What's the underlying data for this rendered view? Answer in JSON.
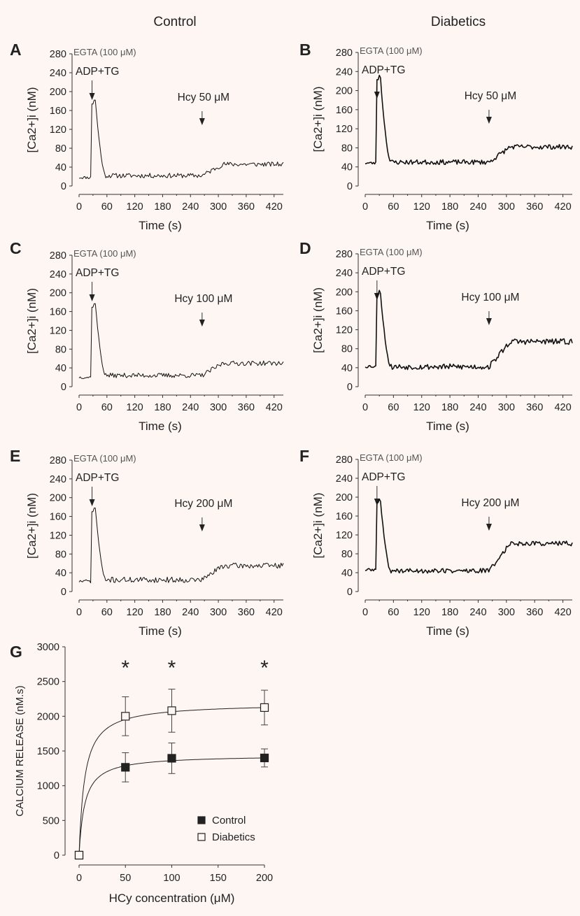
{
  "figure": {
    "col_titles": [
      "Control",
      "Diabetics"
    ]
  },
  "chart_data": [
    {
      "panel": "A",
      "type": "line",
      "column": "Control",
      "xlabel": "Time (s)",
      "ylabel": "[Ca2+]i (nM)",
      "xlim": [
        0,
        440
      ],
      "ylim": [
        0,
        280
      ],
      "xticks": [
        0,
        60,
        120,
        180,
        240,
        300,
        360,
        420
      ],
      "yticks": [
        0,
        40,
        80,
        120,
        160,
        200,
        240,
        280
      ],
      "annotations": {
        "egta": "EGTA (100 μM)",
        "agent": "ADP+TG",
        "agent_time": 28,
        "hcy": "Hcy 50 μM",
        "hcy_time": 265
      },
      "series": [
        {
          "baseline": 20,
          "peak": 182,
          "peak_time": 35,
          "pre_level": 18,
          "mid_level": 22,
          "end_level": 46,
          "noise": 5,
          "seed": 11
        }
      ]
    },
    {
      "panel": "B",
      "type": "line",
      "column": "Diabetics",
      "xlabel": "Time (s)",
      "ylabel": "[Ca2+]i (nM)",
      "xlim": [
        0,
        440
      ],
      "ylim": [
        0,
        280
      ],
      "xticks": [
        0,
        60,
        120,
        180,
        240,
        300,
        360,
        420
      ],
      "yticks": [
        0,
        40,
        80,
        120,
        160,
        200,
        240,
        280
      ],
      "annotations": {
        "egta": "EGTA (100 μM)",
        "agent": "ADP+TG",
        "agent_time": 25,
        "hcy": "Hcy 50 μM",
        "hcy_time": 263
      },
      "series": [
        {
          "baseline": 48,
          "peak": 232,
          "peak_time": 32,
          "pre_level": 48,
          "mid_level": 50,
          "end_level": 82,
          "noise": 5,
          "seed": 23
        }
      ]
    },
    {
      "panel": "C",
      "type": "line",
      "column": "Control",
      "xlabel": "Time (s)",
      "ylabel": "[Ca2+]i (nM)",
      "xlim": [
        0,
        440
      ],
      "ylim": [
        0,
        280
      ],
      "xticks": [
        0,
        60,
        120,
        180,
        240,
        300,
        360,
        420
      ],
      "yticks": [
        0,
        40,
        80,
        120,
        160,
        200,
        240,
        280
      ],
      "annotations": {
        "egta": "EGTA (100 μM)",
        "agent": "ADP+TG",
        "agent_time": 28,
        "hcy": "Hcy 100 μM",
        "hcy_time": 265
      },
      "series": [
        {
          "baseline": 20,
          "peak": 177,
          "peak_time": 35,
          "pre_level": 20,
          "mid_level": 24,
          "end_level": 50,
          "noise": 5,
          "seed": 37
        }
      ]
    },
    {
      "panel": "D",
      "type": "line",
      "column": "Diabetics",
      "xlabel": "Time (s)",
      "ylabel": "[Ca2+]i (nM)",
      "xlim": [
        0,
        440
      ],
      "ylim": [
        0,
        280
      ],
      "xticks": [
        0,
        60,
        120,
        180,
        240,
        300,
        360,
        420
      ],
      "yticks": [
        0,
        40,
        80,
        120,
        160,
        200,
        240,
        280
      ],
      "annotations": {
        "egta": "EGTA (100 μM)",
        "agent": "ADP+TG",
        "agent_time": 25,
        "hcy": "Hcy 100 μM",
        "hcy_time": 263
      },
      "series": [
        {
          "baseline": 43,
          "peak": 203,
          "peak_time": 32,
          "pre_level": 43,
          "mid_level": 42,
          "end_level": 95,
          "noise": 6,
          "seed": 53
        }
      ]
    },
    {
      "panel": "E",
      "type": "line",
      "column": "Control",
      "xlabel": "Time (s)",
      "ylabel": "[Ca2+]i (nM)",
      "xlim": [
        0,
        440
      ],
      "ylim": [
        0,
        280
      ],
      "xticks": [
        0,
        60,
        120,
        180,
        240,
        300,
        360,
        420
      ],
      "yticks": [
        0,
        40,
        80,
        120,
        160,
        200,
        240,
        280
      ],
      "annotations": {
        "egta": "EGTA (100 μM)",
        "agent": "ADP+TG",
        "agent_time": 28,
        "hcy": "Hcy 200 μM",
        "hcy_time": 265
      },
      "series": [
        {
          "baseline": 22,
          "peak": 178,
          "peak_time": 35,
          "pre_level": 22,
          "mid_level": 25,
          "end_level": 55,
          "noise": 6,
          "seed": 71
        }
      ]
    },
    {
      "panel": "F",
      "type": "line",
      "column": "Diabetics",
      "xlabel": "Time (s)",
      "ylabel": "[Ca2+]i (nM)",
      "xlim": [
        0,
        440
      ],
      "ylim": [
        0,
        280
      ],
      "xticks": [
        0,
        60,
        120,
        180,
        240,
        300,
        360,
        420
      ],
      "yticks": [
        0,
        40,
        80,
        120,
        160,
        200,
        240,
        280
      ],
      "annotations": {
        "egta": "EGTA (100 μM)",
        "agent": "ADP+TG",
        "agent_time": 25,
        "hcy": "Hcy 200 μM",
        "hcy_time": 263
      },
      "series": [
        {
          "baseline": 46,
          "peak": 196,
          "peak_time": 32,
          "pre_level": 46,
          "mid_level": 44,
          "end_level": 102,
          "noise": 5,
          "seed": 89
        }
      ]
    },
    {
      "panel": "G",
      "type": "scatter",
      "xlabel": "HCy concentration (μM)",
      "ylabel": "CALCIUM RELEASE (nM.s)",
      "xlim": [
        0,
        200
      ],
      "ylim": [
        0,
        3000
      ],
      "xticks": [
        0,
        50,
        100,
        150,
        200
      ],
      "yticks": [
        0,
        500,
        1000,
        1500,
        2000,
        2500,
        3000
      ],
      "x": [
        0,
        50,
        100,
        200
      ],
      "series": [
        {
          "name": "Control",
          "marker": "filled-square",
          "values": [
            0,
            1265,
            1395,
            1400
          ],
          "errors": [
            0,
            210,
            220,
            130
          ]
        },
        {
          "name": "Diabetics",
          "marker": "open-square",
          "values": [
            0,
            2000,
            2080,
            2125
          ],
          "errors": [
            0,
            280,
            310,
            250
          ]
        }
      ],
      "significance": {
        "symbol": "*",
        "x": [
          50,
          100,
          200
        ]
      },
      "legend_position": "bottom-right"
    }
  ]
}
